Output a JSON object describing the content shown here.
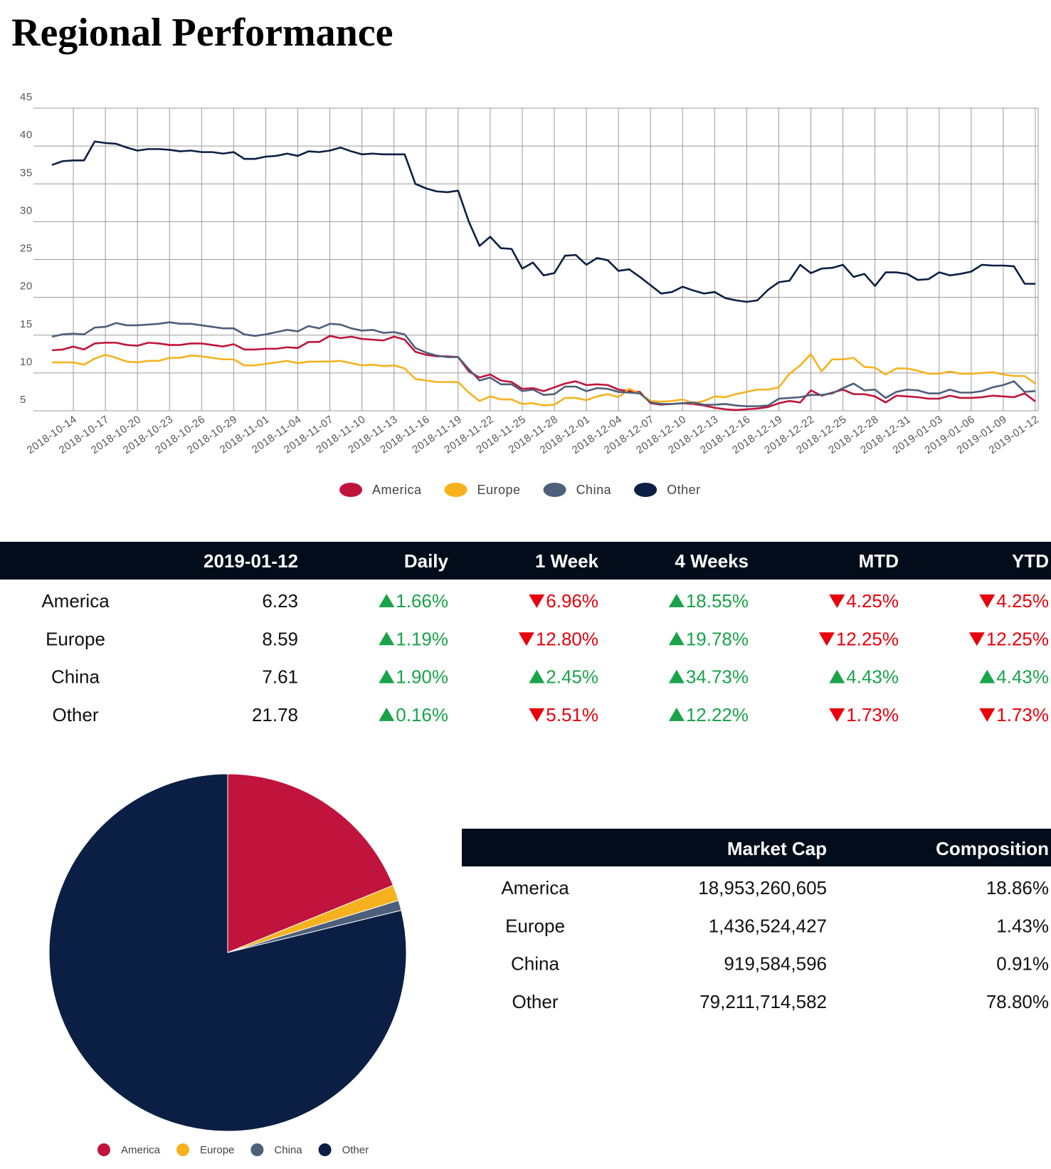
{
  "title": "Regional Performance",
  "chart_data": [
    {
      "type": "line",
      "x": [
        "2018-10-12",
        "2018-10-13",
        "2018-10-14",
        "2018-10-15",
        "2018-10-16",
        "2018-10-17",
        "2018-10-18",
        "2018-10-19",
        "2018-10-20",
        "2018-10-21",
        "2018-10-22",
        "2018-10-23",
        "2018-10-24",
        "2018-10-25",
        "2018-10-26",
        "2018-10-27",
        "2018-10-28",
        "2018-10-29",
        "2018-10-30",
        "2018-10-31",
        "2018-11-01",
        "2018-11-02",
        "2018-11-03",
        "2018-11-04",
        "2018-11-05",
        "2018-11-06",
        "2018-11-07",
        "2018-11-08",
        "2018-11-09",
        "2018-11-10",
        "2018-11-11",
        "2018-11-12",
        "2018-11-13",
        "2018-11-14",
        "2018-11-15",
        "2018-11-16",
        "2018-11-17",
        "2018-11-18",
        "2018-11-19",
        "2018-11-20",
        "2018-11-21",
        "2018-11-22",
        "2018-11-23",
        "2018-11-24",
        "2018-11-25",
        "2018-11-26",
        "2018-11-27",
        "2018-11-28",
        "2018-11-29",
        "2018-11-30",
        "2018-12-01",
        "2018-12-02",
        "2018-12-03",
        "2018-12-04",
        "2018-12-05",
        "2018-12-06",
        "2018-12-07",
        "2018-12-08",
        "2018-12-09",
        "2018-12-10",
        "2018-12-11",
        "2018-12-12",
        "2018-12-13",
        "2018-12-14",
        "2018-12-15",
        "2018-12-16",
        "2018-12-17",
        "2018-12-18",
        "2018-12-19",
        "2018-12-20",
        "2018-12-21",
        "2018-12-22",
        "2018-12-23",
        "2018-12-24",
        "2018-12-25",
        "2018-12-26",
        "2018-12-27",
        "2018-12-28",
        "2018-12-29",
        "2018-12-30",
        "2018-12-31",
        "2019-01-01",
        "2019-01-02",
        "2019-01-03",
        "2019-01-04",
        "2019-01-05",
        "2019-01-06",
        "2019-01-07",
        "2019-01-08",
        "2019-01-09",
        "2019-01-10",
        "2019-01-11",
        "2019-01-12"
      ],
      "xlim": [
        "2018-10-12",
        "2019-01-12"
      ],
      "xticks": [
        "2018-10-14",
        "2018-10-17",
        "2018-10-20",
        "2018-10-23",
        "2018-10-26",
        "2018-10-29",
        "2018-11-01",
        "2018-11-04",
        "2018-11-07",
        "2018-11-10",
        "2018-11-13",
        "2018-11-16",
        "2018-11-19",
        "2018-11-22",
        "2018-11-25",
        "2018-11-28",
        "2018-12-01",
        "2018-12-04",
        "2018-12-07",
        "2018-12-10",
        "2018-12-13",
        "2018-12-16",
        "2018-12-19",
        "2018-12-22",
        "2018-12-25",
        "2018-12-28",
        "2018-12-31",
        "2019-01-03",
        "2019-01-06",
        "2019-01-09",
        "2019-01-12"
      ],
      "ylim": [
        5,
        45
      ],
      "yticks": [
        5,
        10,
        15,
        20,
        25,
        30,
        35,
        40,
        45
      ],
      "grid": true,
      "legend": "bottom",
      "series": [
        {
          "name": "America",
          "color": "#c0143c",
          "values": [
            13,
            13.1,
            13.5,
            13.1,
            13.9,
            14,
            14,
            13.7,
            13.6,
            14,
            13.9,
            13.7,
            13.7,
            13.9,
            13.9,
            13.7,
            13.5,
            13.8,
            13.1,
            13.1,
            13.2,
            13.2,
            13.4,
            13.3,
            14.1,
            14.1,
            14.9,
            14.6,
            14.8,
            14.5,
            14.4,
            14.3,
            14.8,
            14.4,
            12.8,
            12.4,
            12.2,
            12.2,
            12.1,
            10.2,
            9.4,
            9.8,
            9,
            8.8,
            7.9,
            8,
            7.6,
            8.1,
            8.6,
            8.9,
            8.4,
            8.5,
            8.4,
            7.8,
            7.6,
            7.5,
            6,
            5.8,
            5.9,
            6,
            5.9,
            5.7,
            5.4,
            5.2,
            5.1,
            5.2,
            5.3,
            5.5,
            6,
            6.3,
            6.1,
            7.7,
            7,
            7.4,
            7.8,
            7.2,
            7.2,
            6.9,
            6.1,
            7,
            6.9,
            6.8,
            6.6,
            6.6,
            7,
            6.7,
            6.7,
            6.8,
            7,
            6.9,
            6.8,
            7.3,
            6.23
          ]
        },
        {
          "name": "Europe",
          "color": "#f5b21e",
          "values": [
            11.4,
            11.4,
            11.4,
            11.1,
            11.9,
            12.4,
            12,
            11.5,
            11.4,
            11.6,
            11.6,
            12,
            12,
            12.3,
            12.2,
            12,
            11.8,
            11.8,
            11,
            11,
            11.2,
            11.4,
            11.6,
            11.3,
            11.5,
            11.5,
            11.5,
            11.6,
            11.3,
            11,
            11.1,
            10.9,
            11,
            10.6,
            9.2,
            9,
            8.8,
            8.8,
            8.8,
            7.4,
            6.3,
            6.9,
            6.5,
            6.5,
            5.9,
            6,
            5.7,
            5.8,
            6.7,
            6.7,
            6.4,
            6.9,
            7.2,
            6.8,
            7.9,
            7.3,
            6.3,
            6.2,
            6.3,
            6.5,
            6,
            6.3,
            6.9,
            6.8,
            7.2,
            7.5,
            7.8,
            7.8,
            8.1,
            9.9,
            11,
            12.5,
            10.2,
            11.8,
            11.8,
            12,
            10.8,
            10.7,
            9.8,
            10.6,
            10.6,
            10.3,
            9.9,
            9.9,
            10.2,
            9.9,
            9.9,
            10,
            10.1,
            9.8,
            9.6,
            9.6,
            8.59
          ]
        },
        {
          "name": "China",
          "color": "#4d5f7a",
          "values": [
            14.8,
            15.1,
            15.2,
            15.1,
            16,
            16.1,
            16.6,
            16.3,
            16.3,
            16.4,
            16.5,
            16.7,
            16.5,
            16.5,
            16.3,
            16.1,
            15.9,
            15.9,
            15.1,
            14.9,
            15.1,
            15.4,
            15.7,
            15.5,
            16.2,
            15.9,
            16.5,
            16.4,
            15.9,
            15.6,
            15.7,
            15.3,
            15.4,
            15.1,
            13.3,
            12.7,
            12.3,
            12.1,
            12.1,
            10.5,
            9,
            9.4,
            8.5,
            8.5,
            7.6,
            7.8,
            7.1,
            7.2,
            8.2,
            8.2,
            7.6,
            8,
            7.9,
            7.5,
            7.4,
            7.3,
            6.1,
            5.9,
            5.9,
            6,
            6.1,
            5.8,
            5.8,
            5.9,
            5.7,
            5.6,
            5.6,
            5.7,
            6.6,
            6.7,
            6.8,
            7.1,
            7.1,
            7.3,
            8,
            8.6,
            7.7,
            7.8,
            6.7,
            7.5,
            7.8,
            7.7,
            7.3,
            7.3,
            7.8,
            7.4,
            7.4,
            7.6,
            8.1,
            8.4,
            8.9,
            7.5,
            7.61
          ]
        },
        {
          "name": "Other",
          "color": "#0b1f44",
          "values": [
            37.5,
            38,
            38.1,
            38.1,
            40.6,
            40.4,
            40.3,
            39.8,
            39.4,
            39.6,
            39.6,
            39.5,
            39.3,
            39.4,
            39.2,
            39.2,
            39,
            39.2,
            38.3,
            38.3,
            38.6,
            38.7,
            39,
            38.7,
            39.3,
            39.2,
            39.4,
            39.8,
            39.3,
            38.9,
            39,
            38.9,
            38.9,
            38.9,
            35,
            34.4,
            34,
            33.9,
            34.1,
            30,
            26.8,
            28,
            26.5,
            26.4,
            23.8,
            24.6,
            22.9,
            23.2,
            25.5,
            25.6,
            24.3,
            25.2,
            24.9,
            23.5,
            23.7,
            22.7,
            21.6,
            20.5,
            20.7,
            21.4,
            20.9,
            20.5,
            20.7,
            19.9,
            19.6,
            19.4,
            19.6,
            21,
            22,
            22.2,
            24.3,
            23.2,
            23.8,
            23.9,
            24.3,
            22.7,
            23.1,
            21.5,
            23.3,
            23.3,
            23.1,
            22.3,
            22.4,
            23.3,
            22.9,
            23.1,
            23.4,
            24.3,
            24.2,
            24.2,
            24.1,
            21.8,
            21.78
          ]
        }
      ]
    },
    {
      "type": "pie",
      "categories": [
        "America",
        "Europe",
        "China",
        "Other"
      ],
      "values": [
        18.86,
        1.43,
        0.91,
        78.8
      ],
      "colors": [
        "#c0143c",
        "#f5b21e",
        "#4d5f7a",
        "#0b1f44"
      ],
      "legend": "bottom-left"
    }
  ],
  "performance_table": {
    "header": [
      "2019-01-12",
      "Daily",
      "1 Week",
      "4 Weeks",
      "MTD",
      "YTD"
    ],
    "rows": [
      {
        "name": "America",
        "value": "6.23",
        "changes": [
          {
            "text": "1.66%",
            "dir": "up"
          },
          {
            "text": "6.96%",
            "dir": "down"
          },
          {
            "text": "18.55%",
            "dir": "up"
          },
          {
            "text": "4.25%",
            "dir": "down"
          },
          {
            "text": "4.25%",
            "dir": "down"
          }
        ]
      },
      {
        "name": "Europe",
        "value": "8.59",
        "changes": [
          {
            "text": "1.19%",
            "dir": "up"
          },
          {
            "text": "12.80%",
            "dir": "down"
          },
          {
            "text": "19.78%",
            "dir": "up"
          },
          {
            "text": "12.25%",
            "dir": "down"
          },
          {
            "text": "12.25%",
            "dir": "down"
          }
        ]
      },
      {
        "name": "China",
        "value": "7.61",
        "changes": [
          {
            "text": "1.90%",
            "dir": "up"
          },
          {
            "text": "2.45%",
            "dir": "up"
          },
          {
            "text": "34.73%",
            "dir": "up"
          },
          {
            "text": "4.43%",
            "dir": "up"
          },
          {
            "text": "4.43%",
            "dir": "up"
          }
        ]
      },
      {
        "name": "Other",
        "value": "21.78",
        "changes": [
          {
            "text": "0.16%",
            "dir": "up"
          },
          {
            "text": "5.51%",
            "dir": "down"
          },
          {
            "text": "12.22%",
            "dir": "up"
          },
          {
            "text": "1.73%",
            "dir": "down"
          },
          {
            "text": "1.73%",
            "dir": "down"
          }
        ]
      }
    ]
  },
  "market_table": {
    "header": [
      "Market Cap",
      "Composition"
    ],
    "rows": [
      [
        "America",
        "18,953,260,605",
        "18.86%"
      ],
      [
        "Europe",
        "1,436,524,427",
        "1.43%"
      ],
      [
        "China",
        "919,584,596",
        "0.91%"
      ],
      [
        "Other",
        "79,211,714,582",
        "78.80%"
      ]
    ]
  }
}
